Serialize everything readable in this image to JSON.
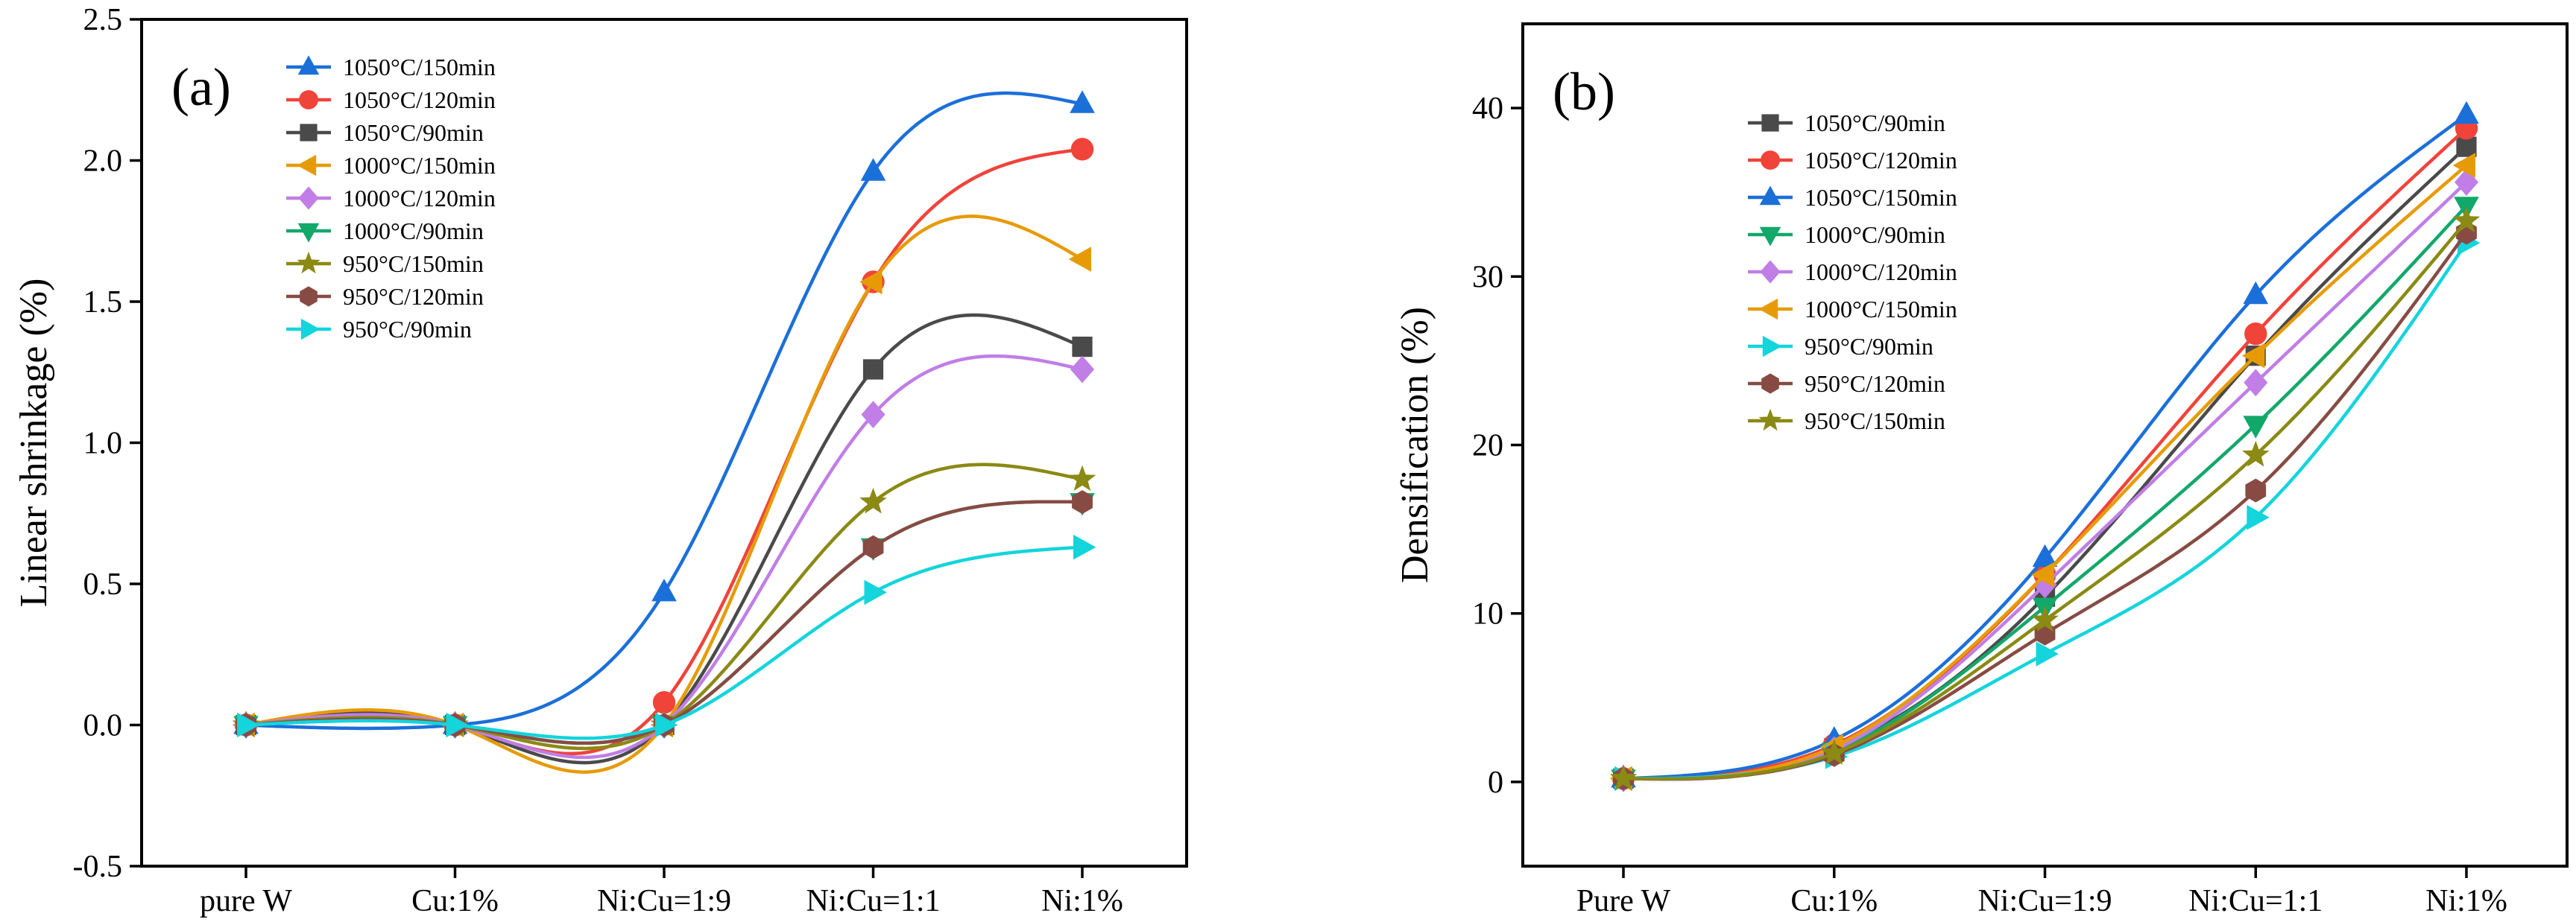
{
  "chart_data": [
    {
      "type": "line",
      "panel_label": "(a)",
      "title": "",
      "xlabel": "",
      "ylabel": "Linear shrinkage (%)",
      "categories": [
        "pure W",
        "Cu:1%",
        "Ni:Cu=1:9",
        "Ni:Cu=1:1",
        "Ni:1%"
      ],
      "ylim": [
        -0.5,
        2.5
      ],
      "yticks": [
        "-0.5",
        "0.0",
        "0.5",
        "1.0",
        "1.5",
        "2.0",
        "2.5"
      ],
      "legend_position": "top-left",
      "series": [
        {
          "name": "1050°C/150min",
          "color": "#1b6fd9",
          "marker": "triangle-up",
          "values": [
            0,
            0,
            0.47,
            1.96,
            2.2
          ]
        },
        {
          "name": "1050°C/120min",
          "color": "#f0433a",
          "marker": "circle",
          "values": [
            0,
            0,
            0.08,
            1.57,
            2.04
          ]
        },
        {
          "name": "1050°C/90min",
          "color": "#4a4a4a",
          "marker": "square",
          "values": [
            0,
            0,
            0,
            1.26,
            1.34
          ]
        },
        {
          "name": "1000°C/150min",
          "color": "#e69b06",
          "marker": "triangle-left",
          "values": [
            0,
            0,
            0,
            1.57,
            1.65
          ]
        },
        {
          "name": "1000°C/120min",
          "color": "#c07ee6",
          "marker": "diamond",
          "values": [
            0,
            0,
            0,
            1.1,
            1.26
          ]
        },
        {
          "name": "1000°C/90min",
          "color": "#12a86a",
          "marker": "triangle-down",
          "values": [
            0,
            0,
            0,
            0.63,
            0.79
          ]
        },
        {
          "name": "950°C/150min",
          "color": "#8a8a14",
          "marker": "star",
          "values": [
            0,
            0,
            0,
            0.79,
            0.87
          ]
        },
        {
          "name": "950°C/120min",
          "color": "#874b43",
          "marker": "hexagon",
          "values": [
            0,
            0,
            0,
            0.63,
            0.79
          ]
        },
        {
          "name": "950°C/90min",
          "color": "#14d4dc",
          "marker": "triangle-right",
          "values": [
            0,
            0,
            0,
            0.47,
            0.63
          ]
        }
      ]
    },
    {
      "type": "line",
      "panel_label": "(b)",
      "title": "",
      "xlabel": "",
      "ylabel": "Densification (%)",
      "categories": [
        "Pure W",
        "Cu:1%",
        "Ni:Cu=1:9",
        "Ni:Cu=1:1",
        "Ni:1%"
      ],
      "ylim": [
        -5,
        45
      ],
      "yticks": [
        "0",
        "10",
        "20",
        "30",
        "40"
      ],
      "legend_position": "top-left",
      "series": [
        {
          "name": "1050°C/90min",
          "color": "#4a4a4a",
          "marker": "square",
          "values": [
            0.2,
            2.0,
            11.0,
            25.3,
            37.7
          ]
        },
        {
          "name": "1050°C/120min",
          "color": "#f0433a",
          "marker": "circle",
          "values": [
            0.2,
            2.2,
            12.3,
            26.6,
            38.8
          ]
        },
        {
          "name": "1050°C/150min",
          "color": "#1b6fd9",
          "marker": "triangle-up",
          "values": [
            0.2,
            2.5,
            13.3,
            28.9,
            39.6
          ]
        },
        {
          "name": "1000°C/90min",
          "color": "#12a86a",
          "marker": "triangle-down",
          "values": [
            0.2,
            1.8,
            10.4,
            21.2,
            34.2
          ]
        },
        {
          "name": "1000°C/120min",
          "color": "#c07ee6",
          "marker": "diamond",
          "values": [
            0.2,
            1.9,
            11.7,
            23.7,
            35.6
          ]
        },
        {
          "name": "1000°C/150min",
          "color": "#e69b06",
          "marker": "triangle-left",
          "values": [
            0.2,
            2.1,
            12.3,
            25.3,
            36.6
          ]
        },
        {
          "name": "950°C/90min",
          "color": "#14d4dc",
          "marker": "triangle-right",
          "values": [
            0.2,
            1.5,
            7.6,
            15.7,
            32.0
          ]
        },
        {
          "name": "950°C/120min",
          "color": "#874b43",
          "marker": "hexagon",
          "values": [
            0.2,
            1.6,
            8.8,
            17.3,
            32.6
          ]
        },
        {
          "name": "950°C/150min",
          "color": "#8a8a14",
          "marker": "star",
          "values": [
            0.2,
            1.7,
            9.6,
            19.4,
            33.3
          ]
        }
      ]
    }
  ]
}
